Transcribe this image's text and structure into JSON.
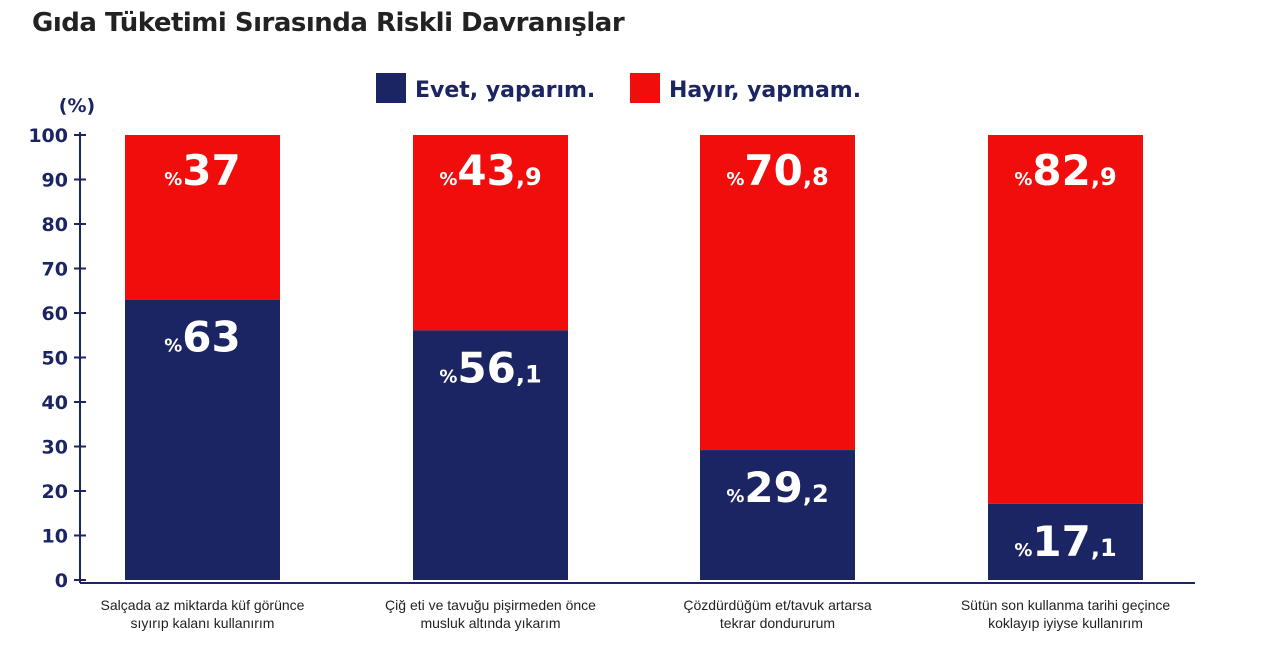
{
  "page_title": "Gıda Tüketimi Sırasında Riskli Davranışlar",
  "colors": {
    "evet": "#1b2563",
    "hayir": "#f20d0d",
    "axis": "#1b2563",
    "text": "#222222"
  },
  "chart_data": {
    "type": "bar",
    "stacked": true,
    "title": "Gıda Tüketimi Sırasında Riskli Davranışlar",
    "ylabel": "(%)",
    "xlabel": "",
    "ylim": [
      0,
      100
    ],
    "yticks": [
      0,
      10,
      20,
      30,
      40,
      50,
      60,
      70,
      80,
      90,
      100
    ],
    "legend_position": "top-center",
    "categories": [
      "Salçada az miktarda küf görünce sıyırıp kalanı kullanırım",
      "Çiğ eti ve tavuğu pişirmeden önce musluk altında yıkarım",
      "Çözdürdüğüm et/tavuk artarsa tekrar dondururum",
      "Sütün son kullanma tarihi geçince koklayıp iyiyse kullanırım"
    ],
    "category_lines": [
      [
        "Salçada az miktarda küf görünce",
        "sıyırıp kalanı kullanırım"
      ],
      [
        "Çiğ eti ve tavuğu pişirmeden önce",
        "musluk altında yıkarım"
      ],
      [
        "Çözdürdüğüm et/tavuk artarsa",
        "tekrar dondururum"
      ],
      [
        "Sütün son kullanma tarihi geçince",
        "koklayıp iyiyse kullanırım"
      ]
    ],
    "series": [
      {
        "name": "Evet, yaparım.",
        "color": "#1b2563",
        "values": [
          63,
          56.1,
          29.2,
          17.1
        ],
        "labels": [
          {
            "int": "63",
            "dec": ""
          },
          {
            "int": "56",
            "dec": ",1"
          },
          {
            "int": "29",
            "dec": ",2"
          },
          {
            "int": "17",
            "dec": ",1"
          }
        ]
      },
      {
        "name": "Hayır, yapmam.",
        "color": "#f20d0d",
        "values": [
          37,
          43.9,
          70.8,
          82.9
        ],
        "labels": [
          {
            "int": "37",
            "dec": ""
          },
          {
            "int": "43",
            "dec": ",9"
          },
          {
            "int": "70",
            "dec": ",8"
          },
          {
            "int": "82",
            "dec": ",9"
          }
        ]
      }
    ],
    "percent_sign": "%"
  }
}
